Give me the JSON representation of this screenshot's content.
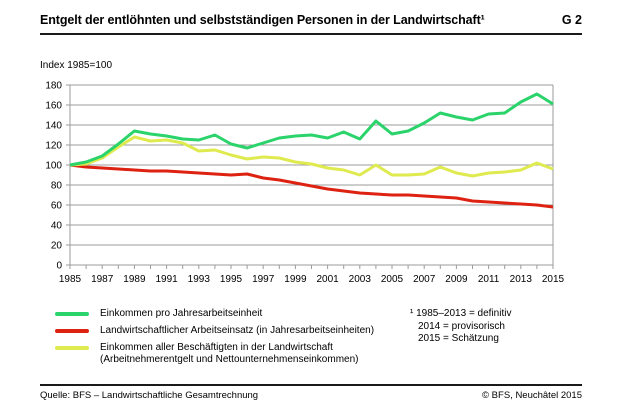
{
  "header": {
    "title": "Entgelt der entlöhnten und selbstständigen Personen in der Landwirtschaft¹",
    "figure_code": "G 2"
  },
  "axis_note": "Index 1985=100",
  "chart_data": {
    "type": "line",
    "title": "Entgelt der entlöhnten und selbstständigen Personen in der Landwirtschaft",
    "index_note": "Index 1985=100",
    "grid": "horizontal",
    "grid_color": "#9b9b9b",
    "legend_position": "bottom-left",
    "ylim": [
      0,
      180
    ],
    "y_tick_step": 20,
    "x_label_step": 2,
    "x": [
      1985,
      1986,
      1987,
      1988,
      1989,
      1990,
      1991,
      1992,
      1993,
      1994,
      1995,
      1996,
      1997,
      1998,
      1999,
      2000,
      2001,
      2002,
      2003,
      2004,
      2005,
      2006,
      2007,
      2008,
      2009,
      2010,
      2011,
      2012,
      2013,
      2014,
      2015
    ],
    "series": [
      {
        "id": "einkommen-pro-jahresarbeitseinheit",
        "name": "Einkommen pro Jahresarbeitseinheit",
        "name_line2": "",
        "color": "#2BD36B",
        "values": [
          100,
          103,
          109,
          121,
          134,
          131,
          129,
          126,
          125,
          130,
          121,
          117,
          122,
          127,
          129,
          130,
          127,
          133,
          126,
          144,
          131,
          134,
          142,
          152,
          148,
          145,
          151,
          152,
          163,
          171,
          161
        ]
      },
      {
        "id": "landwirtschaftlicher-arbeitseinsatz",
        "name": "Landwirtschaftlicher Arbeitseinsatz (in Jahresarbeitseinheiten)",
        "name_line2": "",
        "color": "#DD2211",
        "values": [
          100,
          98,
          97,
          96,
          95,
          94,
          94,
          93,
          92,
          91,
          90,
          91,
          87,
          85,
          82,
          79,
          76,
          74,
          72,
          71,
          70,
          70,
          69,
          68,
          67,
          64,
          63,
          62,
          61,
          60,
          58
        ]
      },
      {
        "id": "einkommen-aller-beschaeftigten",
        "name": "Einkommen aller Beschäftigten in der Landwirtschaft",
        "name_line2": "(Arbeitnehmerentgelt und Nettounternehmenseinkommen)",
        "color": "#DFEA4F",
        "values": [
          100,
          101,
          107,
          118,
          128,
          124,
          125,
          122,
          114,
          115,
          110,
          106,
          108,
          107,
          103,
          101,
          97,
          95,
          90,
          100,
          90,
          90,
          91,
          98,
          92,
          89,
          92,
          93,
          95,
          102,
          96
        ]
      }
    ]
  },
  "footnote": {
    "line1": "¹ 1985–2013 = definitiv",
    "line2": "2014 = provisorisch",
    "line3": "2015 = Schätzung"
  },
  "footer": {
    "source": "Quelle: BFS – Landwirtschaftliche Gesamtrechnung",
    "copyright": "© BFS, Neuchâtel 2015"
  }
}
